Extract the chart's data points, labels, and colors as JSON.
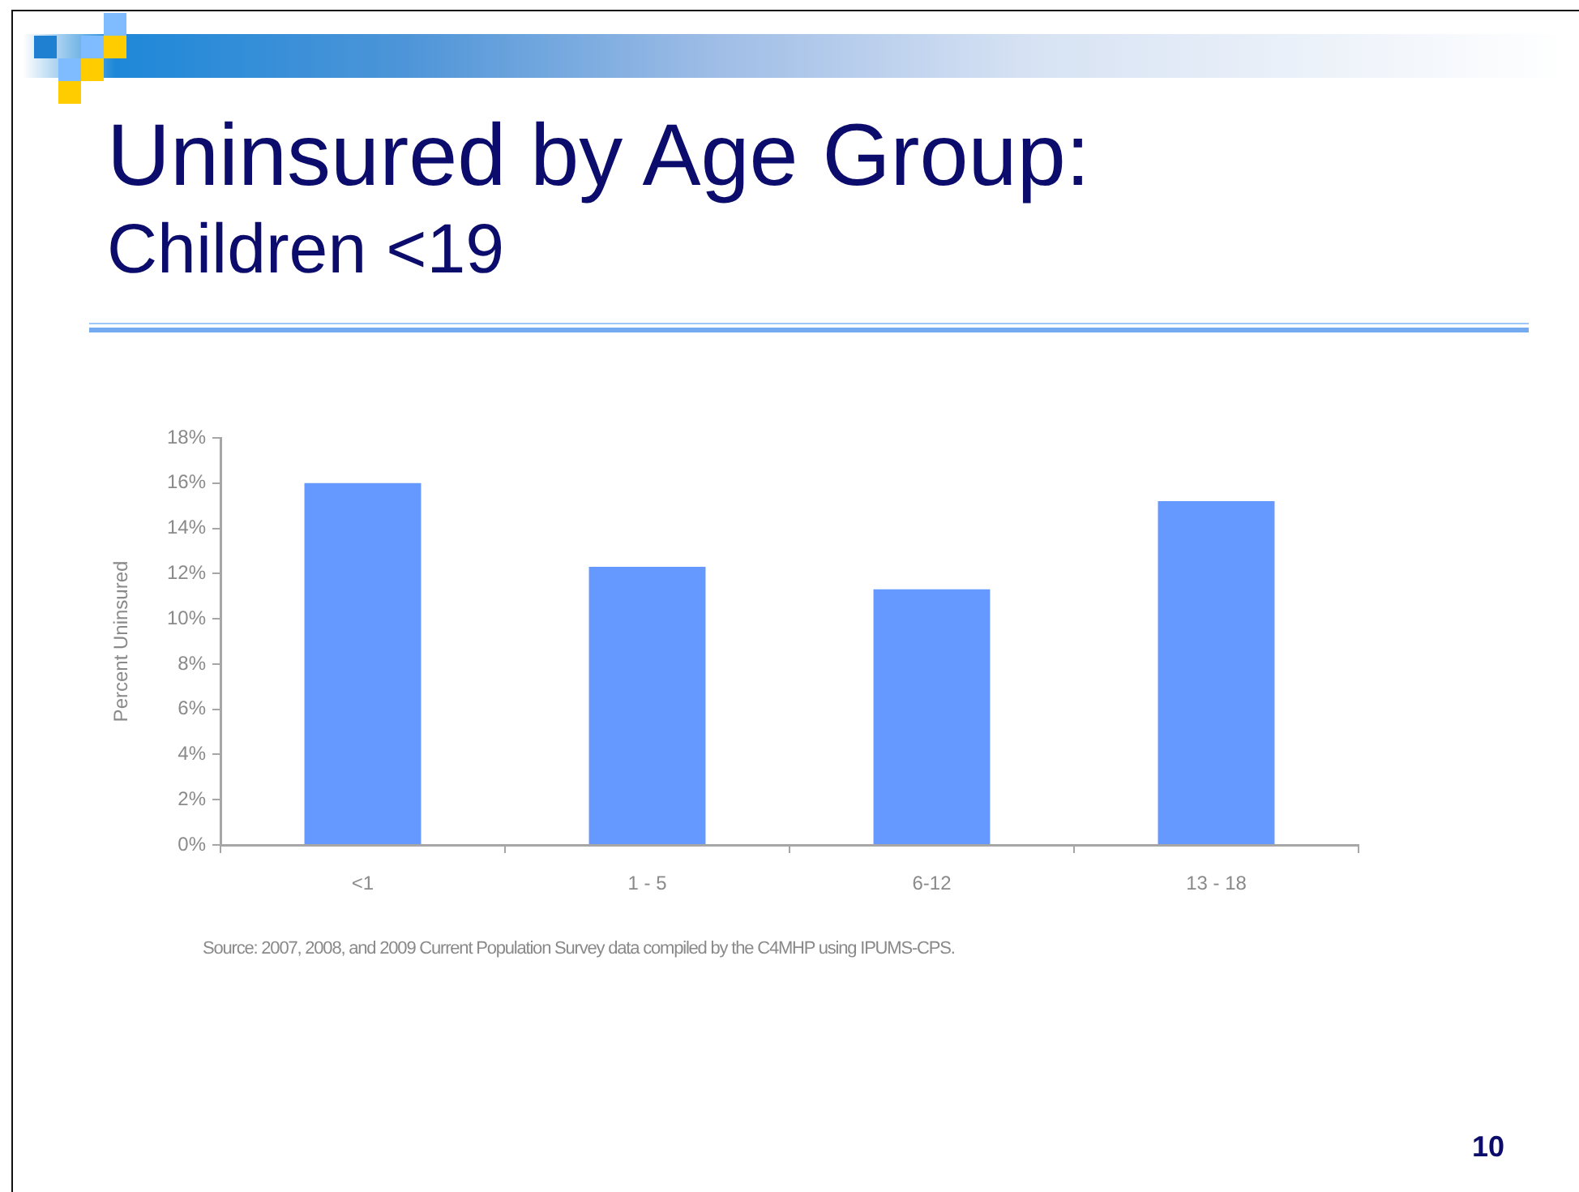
{
  "chart_data": {
    "type": "bar",
    "title": "Uninsured by Age Group:",
    "subtitle": "Children <19",
    "ylabel": "Percent Uninsured",
    "categories": [
      "<1",
      "1 - 5",
      "6-12",
      "13 - 18"
    ],
    "values": [
      16.0,
      12.3,
      11.3,
      15.2
    ],
    "color": "#6699ff",
    "ylim": [
      0,
      18
    ],
    "yticks": [
      {
        "value": 0,
        "label": "0%"
      },
      {
        "value": 2,
        "label": "2%"
      },
      {
        "value": 4,
        "label": "4%"
      },
      {
        "value": 6,
        "label": "6%"
      },
      {
        "value": 8,
        "label": "8%"
      },
      {
        "value": 10,
        "label": "10%"
      },
      {
        "value": 12,
        "label": "12%"
      },
      {
        "value": 14,
        "label": "14%"
      },
      {
        "value": 16,
        "label": "16%"
      },
      {
        "value": 18,
        "label": "18%"
      }
    ],
    "grid": false,
    "annotations": [
      "Source:  2007, 2008,  and 2009 Current Population Survey data compiled by the C4MHP using IPUMS-CPS.",
      "10"
    ]
  }
}
